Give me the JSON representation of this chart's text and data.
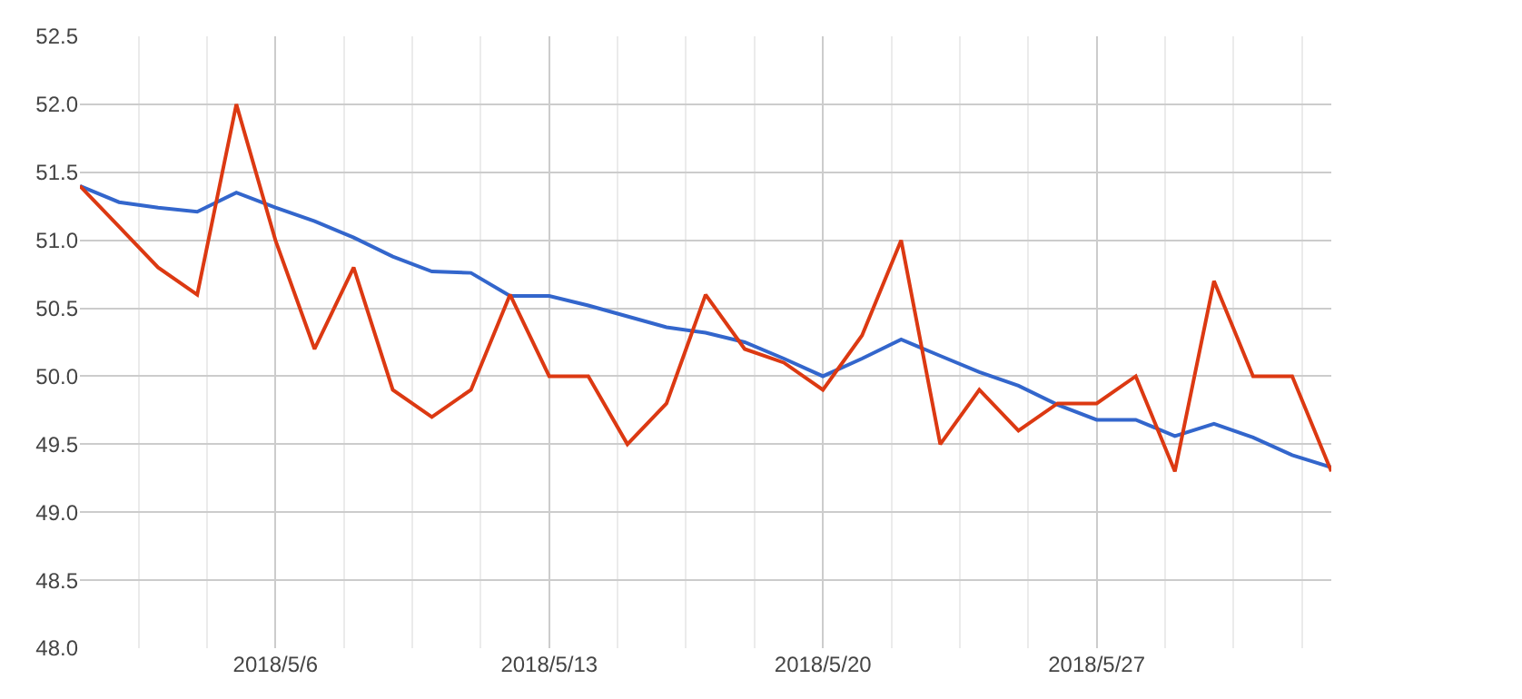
{
  "chart_data": {
    "type": "line",
    "x": [
      "2018-05-01",
      "2018-05-02",
      "2018-05-03",
      "2018-05-04",
      "2018-05-05",
      "2018-05-06",
      "2018-05-07",
      "2018-05-08",
      "2018-05-09",
      "2018-05-10",
      "2018-05-11",
      "2018-05-12",
      "2018-05-13",
      "2018-05-14",
      "2018-05-15",
      "2018-05-16",
      "2018-05-17",
      "2018-05-18",
      "2018-05-19",
      "2018-05-20",
      "2018-05-21",
      "2018-05-22",
      "2018-05-23",
      "2018-05-24",
      "2018-05-25",
      "2018-05-26",
      "2018-05-27",
      "2018-05-28",
      "2018-05-29",
      "2018-05-30",
      "2018-05-31",
      "2018-06-01",
      "2018-06-02"
    ],
    "series": [
      {
        "color": "#3366cc",
        "values": [
          51.4,
          51.28,
          51.24,
          51.21,
          51.35,
          51.24,
          51.14,
          51.02,
          50.88,
          50.77,
          50.76,
          50.59,
          50.59,
          50.52,
          50.44,
          50.36,
          50.32,
          50.25,
          50.13,
          50.0,
          50.13,
          50.27,
          50.15,
          50.03,
          49.93,
          49.79,
          49.68,
          49.68,
          49.56,
          49.65,
          49.55,
          49.42,
          49.33
        ]
      },
      {
        "color": "#dc3912",
        "values": [
          51.4,
          51.1,
          50.8,
          50.6,
          52.0,
          51.0,
          50.2,
          50.8,
          49.9,
          49.7,
          49.9,
          50.6,
          50.0,
          50.0,
          49.5,
          49.8,
          50.6,
          50.2,
          50.1,
          49.9,
          50.3,
          51.0,
          49.5,
          49.9,
          49.6,
          49.8,
          49.8,
          50.0,
          49.3,
          50.7,
          50.0,
          50.0,
          49.3
        ]
      }
    ],
    "xlim": [
      "2018-05-01",
      "2018-06-02"
    ],
    "xticks": [
      {
        "value": "2018-05-06",
        "label": "2018/5/6"
      },
      {
        "value": "2018-05-13",
        "label": "2018/5/13"
      },
      {
        "value": "2018-05-20",
        "label": "2018/5/20"
      },
      {
        "value": "2018-05-27",
        "label": "2018/5/27"
      }
    ],
    "ylim": [
      48.0,
      52.5
    ],
    "yticks": [
      {
        "value": 48,
        "label": "48.0"
      },
      {
        "value": 48.5,
        "label": "48.5"
      },
      {
        "value": 49,
        "label": "49.0"
      },
      {
        "value": 49.5,
        "label": "49.5"
      },
      {
        "value": 50,
        "label": "50.0"
      },
      {
        "value": 50.5,
        "label": "50.5"
      },
      {
        "value": 51,
        "label": "51.0"
      },
      {
        "value": 51.5,
        "label": "51.5"
      },
      {
        "value": 52,
        "label": "52.0"
      },
      {
        "value": 52.5,
        "label": "52.5"
      }
    ],
    "grid": true,
    "marker": "none",
    "line_style": "solid"
  }
}
